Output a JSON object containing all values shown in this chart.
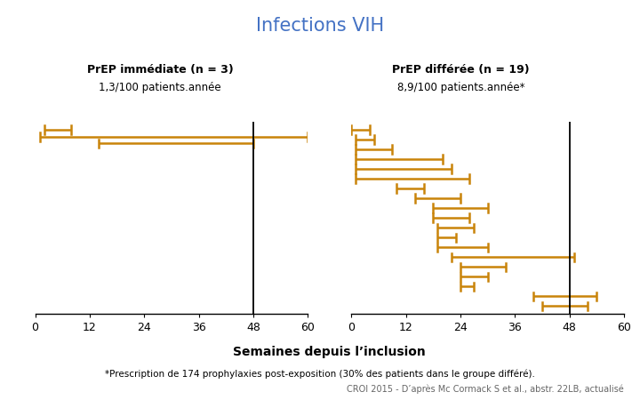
{
  "title": "Infections VIH",
  "title_color": "#4472C4",
  "title_fontsize": 15,
  "bg_color": "#FFFFFF",
  "group1_label": "PrEP immédiate (n = 3)",
  "group1_sublabel": "1,3/100 patients.année",
  "group2_label": "PrEP différée (n = 19)",
  "group2_sublabel": "8,9/100 patients.année*",
  "xlabel": "Semaines depuis l’inclusion",
  "footnote": "*Prescription de 174 prophylaxies post-exposition (30% des patients dans le groupe différé).",
  "source": "CROI 2015 - D’après Mc Cormack S et al., abstr. 22LB, actualisé",
  "vertical_line_week": 48,
  "bar_color": "#C9840A",
  "bar_linewidth": 1.8,
  "group1_bars": [
    {
      "start": 2,
      "end": 8,
      "y": 19
    },
    {
      "start": 1,
      "end": 60,
      "y": 18.3
    },
    {
      "start": 14,
      "end": 48,
      "y": 17.6
    }
  ],
  "group2_bars": [
    {
      "start": 0,
      "end": 4,
      "y": 19
    },
    {
      "start": 1,
      "end": 5,
      "y": 18
    },
    {
      "start": 1,
      "end": 9,
      "y": 17
    },
    {
      "start": 1,
      "end": 20,
      "y": 16
    },
    {
      "start": 1,
      "end": 22,
      "y": 15
    },
    {
      "start": 1,
      "end": 26,
      "y": 14
    },
    {
      "start": 10,
      "end": 16,
      "y": 13
    },
    {
      "start": 14,
      "end": 24,
      "y": 12
    },
    {
      "start": 18,
      "end": 30,
      "y": 11
    },
    {
      "start": 18,
      "end": 26,
      "y": 10
    },
    {
      "start": 19,
      "end": 27,
      "y": 9
    },
    {
      "start": 19,
      "end": 23,
      "y": 8
    },
    {
      "start": 19,
      "end": 30,
      "y": 7
    },
    {
      "start": 22,
      "end": 49,
      "y": 6
    },
    {
      "start": 24,
      "end": 34,
      "y": 5
    },
    {
      "start": 24,
      "end": 30,
      "y": 4
    },
    {
      "start": 24,
      "end": 27,
      "y": 3
    },
    {
      "start": 40,
      "end": 54,
      "y": 2
    },
    {
      "start": 42,
      "end": 52,
      "y": 1
    }
  ],
  "xlim": [
    0,
    60
  ],
  "xticks": [
    0,
    12,
    24,
    36,
    48,
    60
  ],
  "ylim": [
    0.2,
    19.8
  ]
}
